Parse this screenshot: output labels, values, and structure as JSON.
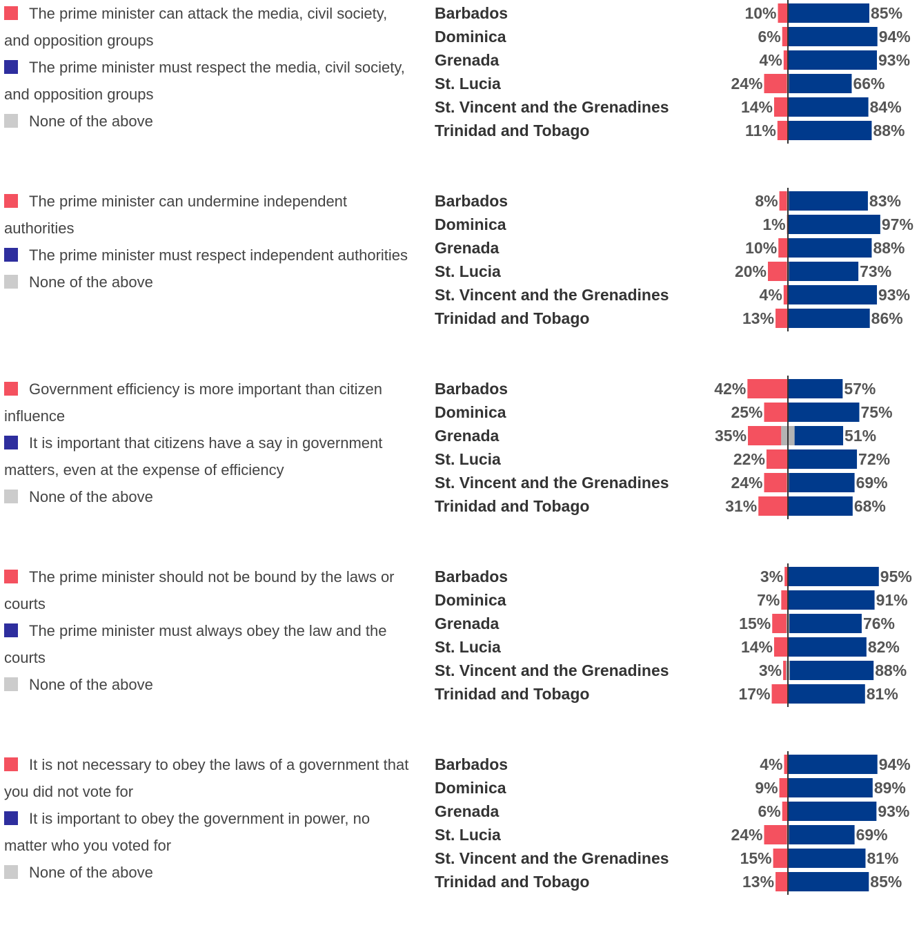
{
  "colors": {
    "negative": "#f4515f",
    "positive": "#003a8c",
    "neutral": "#b3b3b3",
    "negative_swatch": "#f4515f",
    "positive_swatch": "#2e2e9e",
    "neutral_swatch": "#cccccc",
    "axis": "#333333"
  },
  "chart_data": [
    {
      "type": "bar",
      "categories": [
        "Barbados",
        "Dominica",
        "Grenada",
        "St. Lucia",
        "St. Vincent and the Grenadines",
        "Trinidad and Tobago"
      ],
      "legend": [
        "The prime minister can attack the media, civil society, and opposition groups",
        "The prime minister must respect the media, civil society, and opposition groups",
        "None of the above"
      ],
      "series": [
        {
          "name": "The prime minister can attack the media, civil society, and opposition groups",
          "values": [
            10,
            6,
            4,
            24,
            14,
            11
          ]
        },
        {
          "name": "The prime minister must respect the media, civil society, and opposition groups",
          "values": [
            85,
            94,
            93,
            66,
            84,
            88
          ]
        },
        {
          "name": "None of the above",
          "values": [
            1,
            0,
            1,
            2,
            1,
            0
          ]
        }
      ],
      "value_labels": {
        "negative": [
          "10%",
          "6%",
          "4%",
          "24%",
          "14%",
          "11%"
        ],
        "positive": [
          "85%",
          "94%",
          "93%",
          "66%",
          "84%",
          "88%"
        ]
      }
    },
    {
      "type": "bar",
      "categories": [
        "Barbados",
        "Dominica",
        "Grenada",
        "St. Lucia",
        "St. Vincent and the Grenadines",
        "Trinidad and Tobago"
      ],
      "legend": [
        "The prime minister can undermine independent authorities",
        "The prime minister must respect independent authorities",
        "None of the above"
      ],
      "series": [
        {
          "name": "The prime minister can undermine independent authorities",
          "values": [
            8,
            1,
            10,
            20,
            4,
            13
          ]
        },
        {
          "name": "The prime minister must respect independent authorities",
          "values": [
            83,
            97,
            88,
            73,
            93,
            86
          ]
        },
        {
          "name": "None of the above",
          "values": [
            2,
            0,
            0,
            2,
            1,
            0
          ]
        }
      ],
      "value_labels": {
        "negative": [
          "8%",
          "1%",
          "10%",
          "20%",
          "4%",
          "13%"
        ],
        "positive": [
          "83%",
          "97%",
          "88%",
          "73%",
          "93%",
          "86%"
        ]
      }
    },
    {
      "type": "bar",
      "categories": [
        "Barbados",
        "Dominica",
        "Grenada",
        "St. Lucia",
        "St. Vincent and the Grenadines",
        "Trinidad and Tobago"
      ],
      "legend": [
        "Government efficiency is more important than citizen influence",
        "It is important that citizens have a say in government matters, even at the expense of efficiency",
        "None of the above"
      ],
      "series": [
        {
          "name": "Government efficiency is more important than citizen influence",
          "values": [
            42,
            25,
            35,
            22,
            24,
            31
          ]
        },
        {
          "name": "It is important that citizens have a say in government matters, even at the expense of efficiency",
          "values": [
            57,
            75,
            51,
            72,
            69,
            68
          ]
        },
        {
          "name": "None of the above",
          "values": [
            1,
            0,
            14,
            1,
            2,
            0
          ]
        }
      ],
      "value_labels": {
        "negative": [
          "42%",
          "25%",
          "35%",
          "22%",
          "24%",
          "31%"
        ],
        "positive": [
          "57%",
          "75%",
          "51%",
          "72%",
          "69%",
          "68%"
        ]
      }
    },
    {
      "type": "bar",
      "categories": [
        "Barbados",
        "Dominica",
        "Grenada",
        "St. Lucia",
        "St. Vincent and the Grenadines",
        "Trinidad and Tobago"
      ],
      "legend": [
        "The prime minister should not be bound by the laws or courts",
        "The prime minister must always obey the law and the courts",
        "None of the above"
      ],
      "series": [
        {
          "name": "The prime minister should not be bound by the laws or courts",
          "values": [
            3,
            7,
            15,
            14,
            3,
            17
          ]
        },
        {
          "name": "The prime minister must always obey the law and the courts",
          "values": [
            95,
            91,
            76,
            82,
            88,
            81
          ]
        },
        {
          "name": "None of the above",
          "values": [
            1,
            0,
            3,
            1,
            4,
            0
          ]
        }
      ],
      "value_labels": {
        "negative": [
          "3%",
          "7%",
          "15%",
          "14%",
          "3%",
          "17%"
        ],
        "positive": [
          "95%",
          "91%",
          "76%",
          "82%",
          "88%",
          "81%"
        ]
      }
    },
    {
      "type": "bar",
      "categories": [
        "Barbados",
        "Dominica",
        "Grenada",
        "St. Lucia",
        "St. Vincent and the Grenadines",
        "Trinidad and Tobago"
      ],
      "legend": [
        "It is not necessary to obey the laws of a government that you did not vote for",
        "It is important to obey the government in power, no matter who you voted for",
        "None of the above"
      ],
      "series": [
        {
          "name": "It is not necessary to obey the laws of a government that you did not vote for",
          "values": [
            4,
            9,
            6,
            24,
            15,
            13
          ]
        },
        {
          "name": "It is important to obey the government in power, no matter who you voted for",
          "values": [
            94,
            89,
            93,
            69,
            81,
            85
          ]
        },
        {
          "name": "None of the above",
          "values": [
            0,
            0,
            0,
            2,
            1,
            0
          ]
        }
      ],
      "value_labels": {
        "negative": [
          "4%",
          "9%",
          "6%",
          "24%",
          "15%",
          "13%"
        ],
        "positive": [
          "94%",
          "89%",
          "93%",
          "69%",
          "81%",
          "85%"
        ]
      }
    }
  ]
}
